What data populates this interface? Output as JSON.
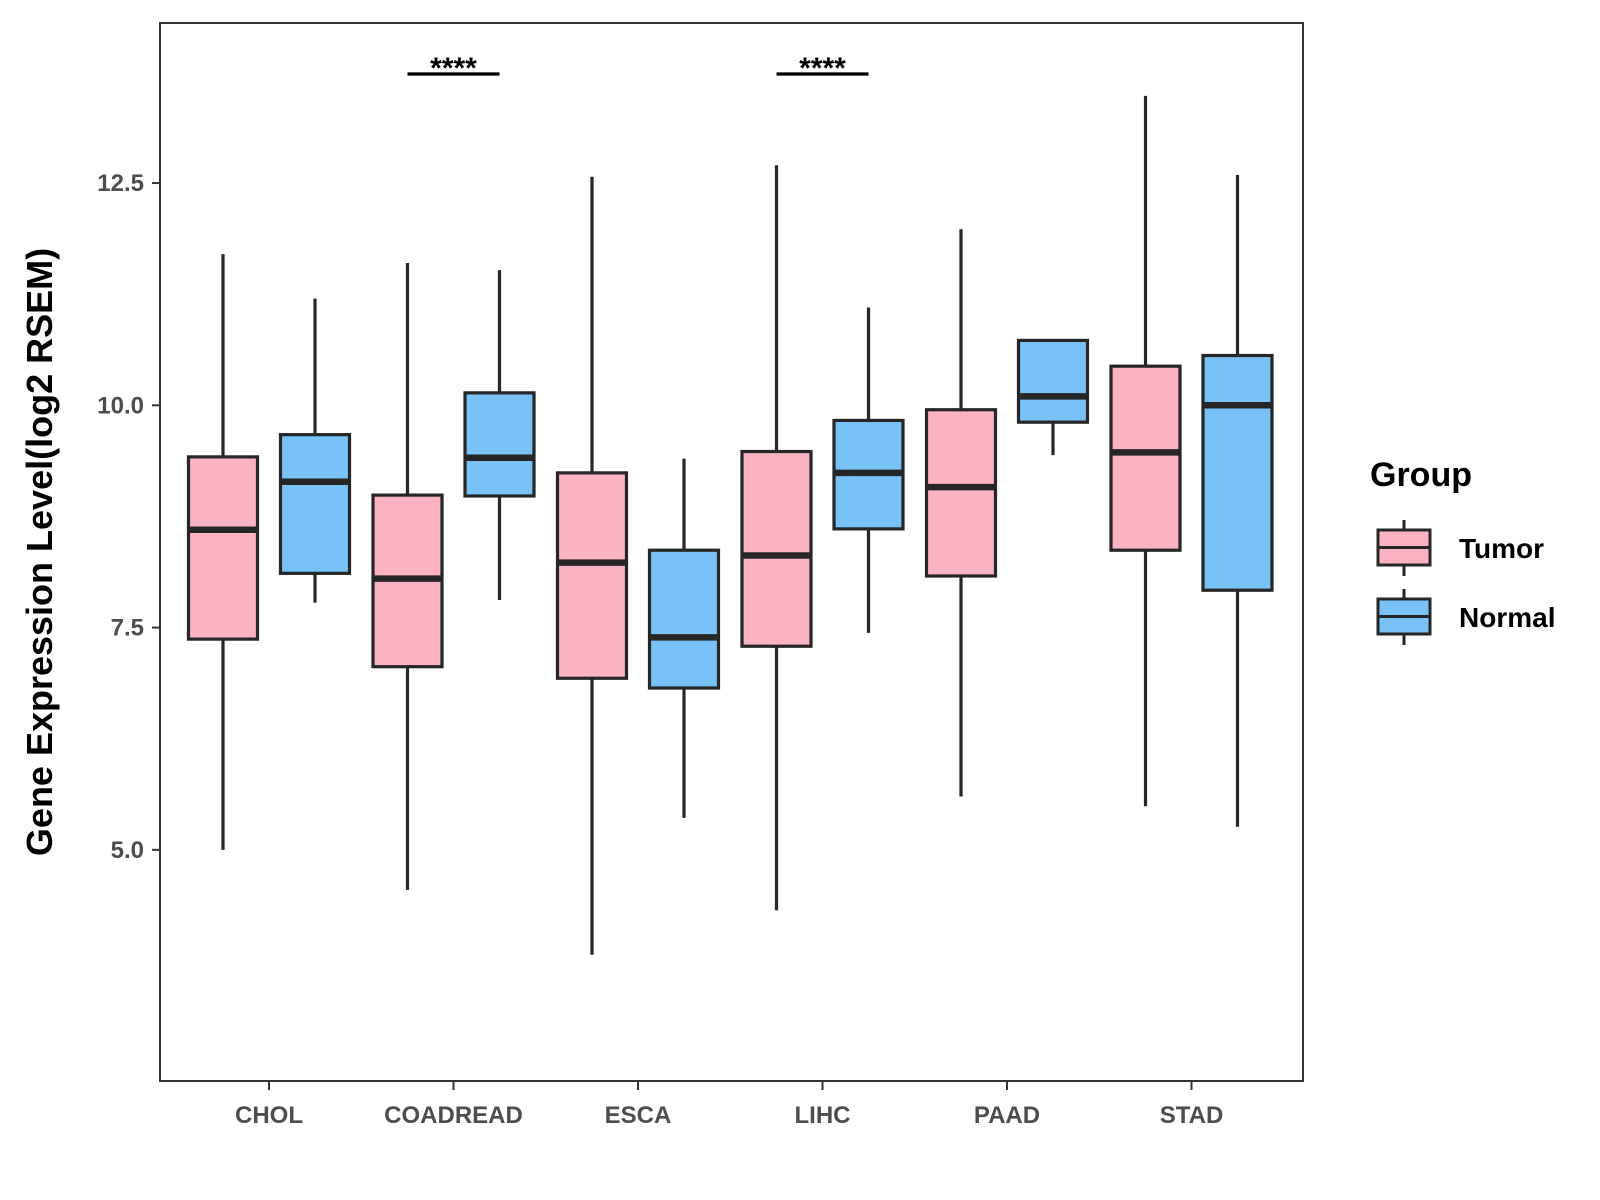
{
  "chart_data": {
    "type": "boxplot",
    "title": "",
    "xlabel": "",
    "ylabel": "Gene Expression Level(log2 RSEM)",
    "ylim": [
      2.4,
      14.3
    ],
    "yticks": [
      5.0,
      7.5,
      10.0,
      12.5
    ],
    "ytick_labels": [
      "5.0",
      "7.5",
      "10.0",
      "12.5"
    ],
    "grid": false,
    "categories": [
      "CHOL",
      "COADREAD",
      "ESCA",
      "LIHC",
      "PAAD",
      "STAD"
    ],
    "legend": {
      "title": "Group",
      "position": "right",
      "entries": [
        {
          "name": "Tumor",
          "color": "#fbb2c3"
        },
        {
          "name": "Normal",
          "color": "#78c2f7"
        }
      ]
    },
    "series": [
      {
        "name": "Tumor",
        "color": "#fbb2c3",
        "boxes": [
          {
            "category": "CHOL",
            "min": 5.0,
            "q1": 7.37,
            "median": 8.6,
            "q3": 9.42,
            "max": 11.7
          },
          {
            "category": "COADREAD",
            "min": 4.55,
            "q1": 7.06,
            "median": 8.05,
            "q3": 8.99,
            "max": 11.6
          },
          {
            "category": "ESCA",
            "min": 3.82,
            "q1": 6.93,
            "median": 8.23,
            "q3": 9.24,
            "max": 12.57
          },
          {
            "category": "LIHC",
            "min": 4.32,
            "q1": 7.29,
            "median": 8.31,
            "q3": 9.48,
            "max": 12.7
          },
          {
            "category": "PAAD",
            "min": 5.6,
            "q1": 8.08,
            "median": 9.08,
            "q3": 9.95,
            "max": 11.98
          },
          {
            "category": "STAD",
            "min": 5.49,
            "q1": 8.37,
            "median": 9.47,
            "q3": 10.44,
            "max": 13.48
          }
        ]
      },
      {
        "name": "Normal",
        "color": "#78c2f7",
        "boxes": [
          {
            "category": "CHOL",
            "min": 7.78,
            "q1": 8.11,
            "median": 9.14,
            "q3": 9.67,
            "max": 11.2
          },
          {
            "category": "COADREAD",
            "min": 7.81,
            "q1": 8.98,
            "median": 9.41,
            "q3": 10.14,
            "max": 11.52
          },
          {
            "category": "ESCA",
            "min": 5.36,
            "q1": 6.82,
            "median": 7.39,
            "q3": 8.37,
            "max": 9.4
          },
          {
            "category": "LIHC",
            "min": 7.44,
            "q1": 8.61,
            "median": 9.24,
            "q3": 9.83,
            "max": 11.1
          },
          {
            "category": "PAAD",
            "min": 9.44,
            "q1": 9.81,
            "median": 10.1,
            "q3": 10.73,
            "max": 10.73
          },
          {
            "category": "STAD",
            "min": 5.26,
            "q1": 7.92,
            "median": 10.0,
            "q3": 10.56,
            "max": 12.59
          }
        ]
      }
    ],
    "annotations": [
      {
        "category": "COADREAD",
        "text": "****"
      },
      {
        "category": "LIHC",
        "text": "****"
      }
    ]
  }
}
